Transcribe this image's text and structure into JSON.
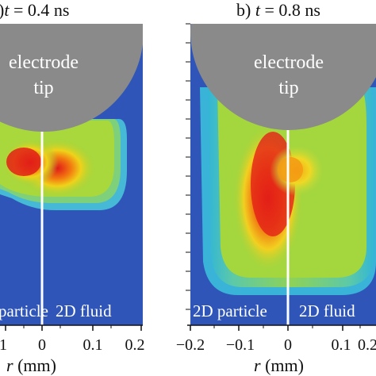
{
  "panels": [
    {
      "id": "a",
      "title_prefix": ")",
      "title_var": "t",
      "title_value": " = 0.4 ns",
      "electrode_line1": "electrode",
      "electrode_line2": "tip",
      "left_label": "particle",
      "right_label": "2D fluid",
      "x_ticks": [
        "1",
        "0",
        "0.1",
        "0.2"
      ]
    },
    {
      "id": "b",
      "title_prefix": "b) ",
      "title_var": "t",
      "title_value": " = 0.8 ns",
      "electrode_line1": "electrode",
      "electrode_line2": "tip",
      "left_label": "2D particle",
      "right_label": "2D fluid",
      "x_ticks": [
        "−0.2",
        "−0.1",
        "0",
        "0.1",
        "0.2"
      ]
    }
  ],
  "axis": {
    "xlabel_var": "r",
    "xlabel_unit": " (mm)"
  },
  "colors": {
    "background_field": "#2f55b8",
    "electrode": "#8a8a8a",
    "divider": "#ffffff",
    "text_overlay": "#ffffff"
  }
}
